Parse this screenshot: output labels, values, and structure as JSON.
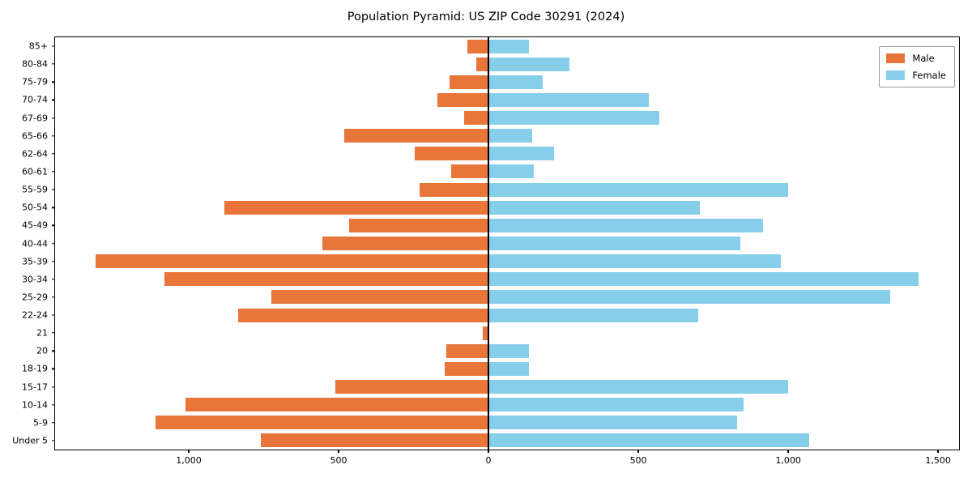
{
  "title": "Population Pyramid: US ZIP Code 30291 (2024)",
  "legend": {
    "male_label": "Male",
    "female_label": "Female"
  },
  "colors": {
    "male": "#E8763A",
    "female": "#87CEEB",
    "axis": "#000000",
    "background": "#ffffff"
  },
  "chart_data": {
    "type": "bar",
    "subtype": "population-pyramid",
    "title": "Population Pyramid: US ZIP Code 30291 (2024)",
    "xlabel": "",
    "ylabel": "",
    "grid": false,
    "legend_position": "upper-right",
    "categories": [
      "85+",
      "80-84",
      "75-79",
      "70-74",
      "67-69",
      "65-66",
      "62-64",
      "60-61",
      "55-59",
      "50-54",
      "45-49",
      "40-44",
      "35-39",
      "30-34",
      "25-29",
      "22-24",
      "21",
      "20",
      "18-19",
      "15-17",
      "10-14",
      "5-9",
      "Under 5"
    ],
    "series": [
      {
        "name": "Male",
        "side": "left",
        "color": "#E8763A",
        "values": [
          70,
          40,
          130,
          170,
          80,
          480,
          245,
          125,
          230,
          880,
          465,
          555,
          1310,
          1080,
          725,
          835,
          20,
          140,
          145,
          510,
          1010,
          1110,
          760
        ]
      },
      {
        "name": "Female",
        "side": "right",
        "color": "#87CEEB",
        "values": [
          135,
          270,
          180,
          535,
          570,
          145,
          220,
          150,
          1000,
          705,
          915,
          840,
          975,
          1435,
          1340,
          700,
          0,
          135,
          135,
          1000,
          850,
          830,
          1070
        ]
      }
    ],
    "x_ticks": [
      {
        "value": -1000,
        "label": "1,000"
      },
      {
        "value": -500,
        "label": "500"
      },
      {
        "value": 0,
        "label": "0"
      },
      {
        "value": 500,
        "label": "500"
      },
      {
        "value": 1000,
        "label": "1,000"
      },
      {
        "value": 1500,
        "label": "1,500"
      }
    ],
    "xlim": [
      -1446,
      1570
    ]
  }
}
